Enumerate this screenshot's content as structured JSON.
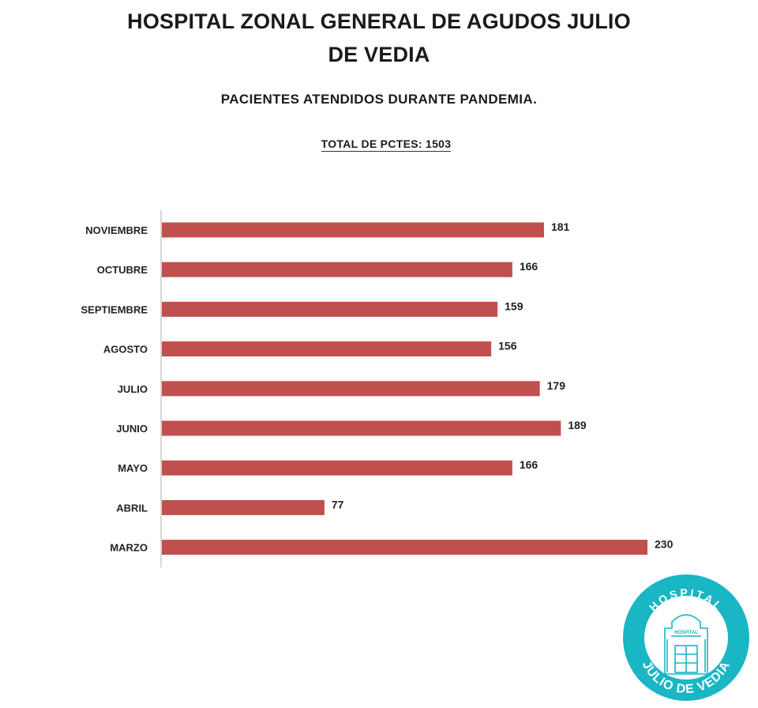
{
  "header": {
    "title_line1": "HOSPITAL ZONAL GENERAL DE AGUDOS JULIO",
    "title_line2": "DE VEDIA",
    "subtitle": "PACIENTES ATENDIDOS DURANTE PANDEMIA.",
    "total": "TOTAL DE PCTES: 1503"
  },
  "logo": {
    "top_text": "HOSPITAL",
    "bottom_text": "JULIO DE VEDIA",
    "inner_text": "HOSPITAL",
    "color": "#19b6c4"
  },
  "chart_data": {
    "type": "bar",
    "orientation": "horizontal",
    "categories": [
      "NOVIEMBRE",
      "OCTUBRE",
      "SEPTIEMBRE",
      "AGOSTO",
      "JULIO",
      "JUNIO",
      "MAYO",
      "ABRIL",
      "MARZO"
    ],
    "values": [
      181,
      166,
      159,
      156,
      179,
      189,
      166,
      77,
      230
    ],
    "bar_color": "#c0504d",
    "data_labels": true,
    "grid": false,
    "xlim": [
      0,
      230
    ]
  }
}
